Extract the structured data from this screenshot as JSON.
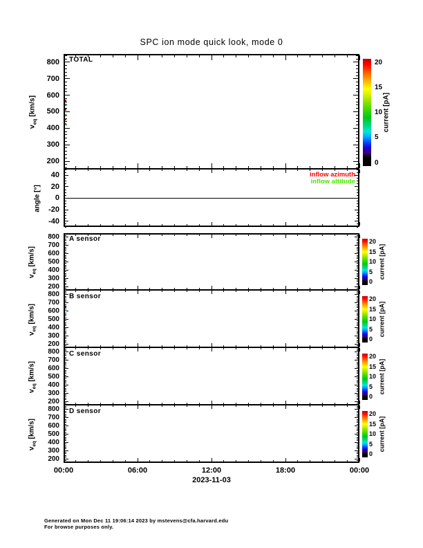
{
  "title": "SPC ion mode quick look, mode 0",
  "footer": {
    "line1": "Generated on Mon Dec 11 19:06:14 2023 by mstevens@cfa.harvard.edu",
    "line2": "For browse purposes only."
  },
  "chart_data": {
    "type": "heatmap",
    "title": "SPC ion mode quick look, mode 0",
    "x_axis": {
      "date_label": "2023-11-03",
      "range_hours": [
        0,
        24
      ],
      "major_tick_hours": [
        0,
        6,
        12,
        18,
        24
      ],
      "major_tick_labels": [
        "00:00",
        "06:00",
        "12:00",
        "18:00",
        "00:00"
      ],
      "minor_tick_interval_hours": 1
    },
    "colorbar": {
      "label": "current [pA]",
      "range": [
        0,
        20
      ],
      "tick_labels": [
        0,
        5,
        10,
        15,
        20
      ],
      "gradient": [
        {
          "pos": 0.0,
          "color": "#000000"
        },
        {
          "pos": 0.08,
          "color": "#000000"
        },
        {
          "pos": 0.12,
          "color": "#38006e"
        },
        {
          "pos": 0.17,
          "color": "#2000d0"
        },
        {
          "pos": 0.22,
          "color": "#0048ff"
        },
        {
          "pos": 0.27,
          "color": "#00a4ff"
        },
        {
          "pos": 0.32,
          "color": "#00e6e0"
        },
        {
          "pos": 0.38,
          "color": "#00d878"
        },
        {
          "pos": 0.45,
          "color": "#00c820"
        },
        {
          "pos": 0.52,
          "color": "#3cd800"
        },
        {
          "pos": 0.6,
          "color": "#8ce400"
        },
        {
          "pos": 0.66,
          "color": "#d2f000"
        },
        {
          "pos": 0.72,
          "color": "#ffff00"
        },
        {
          "pos": 0.78,
          "color": "#ffc000"
        },
        {
          "pos": 0.84,
          "color": "#ff8000"
        },
        {
          "pos": 0.9,
          "color": "#ff3c00"
        },
        {
          "pos": 0.95,
          "color": "#ff0000"
        },
        {
          "pos": 1.0,
          "color": "#c00000"
        }
      ]
    },
    "panels": [
      {
        "id": "total",
        "label": "TOTAL",
        "y_axis": {
          "label_main": "v",
          "label_sub": "eq",
          "label_units": "[km/s]",
          "range": [
            150,
            850
          ],
          "major_ticks": [
            200,
            300,
            400,
            500,
            600,
            700,
            800
          ],
          "minor_step": 20
        },
        "has_colorbar": true,
        "series": [],
        "edge_marks": [
          {
            "v": 569,
            "color": "#d00000"
          },
          {
            "v": 540,
            "color": "#00a000"
          },
          {
            "v": 511,
            "color": "#d00000"
          },
          {
            "v": 481,
            "color": "#00a000"
          },
          {
            "v": 452,
            "color": "#d00000"
          },
          {
            "v": 423,
            "color": "#00a000"
          }
        ]
      },
      {
        "id": "angle",
        "label": "",
        "y_axis": {
          "label_main": "angle",
          "label_sub": "",
          "label_units": "[°]",
          "range": [
            -50,
            50
          ],
          "major_ticks": [
            -40,
            -20,
            0,
            20,
            40
          ],
          "minor_step": 5
        },
        "zero_line": true,
        "legend": [
          {
            "label": "inflow azimuth",
            "color": "#ff0000"
          },
          {
            "label": "inflow attitude",
            "color": "#4de600"
          }
        ],
        "series": []
      },
      {
        "id": "sensor-a",
        "label": "A sensor",
        "y_axis": {
          "label_main": "v",
          "label_sub": "eq",
          "label_units": "[km/s]",
          "range": [
            150,
            850
          ],
          "major_ticks": [
            200,
            300,
            400,
            500,
            600,
            700,
            800
          ],
          "minor_step": 20
        },
        "has_colorbar": true,
        "series": []
      },
      {
        "id": "sensor-b",
        "label": "B sensor",
        "y_axis": {
          "label_main": "v",
          "label_sub": "eq",
          "label_units": "[km/s]",
          "range": [
            150,
            850
          ],
          "major_ticks": [
            200,
            300,
            400,
            500,
            600,
            700,
            800
          ],
          "minor_step": 20
        },
        "has_colorbar": true,
        "series": [],
        "edge_marks": [
          {
            "v": 645,
            "color": "#5c2d91"
          },
          {
            "v": 612,
            "color": "#00b8b8"
          }
        ]
      },
      {
        "id": "sensor-c",
        "label": "C sensor",
        "y_axis": {
          "label_main": "v",
          "label_sub": "eq",
          "label_units": "[km/s]",
          "range": [
            150,
            850
          ],
          "major_ticks": [
            200,
            300,
            400,
            500,
            600,
            700,
            800
          ],
          "minor_step": 20
        },
        "has_colorbar": true,
        "series": []
      },
      {
        "id": "sensor-d",
        "label": "D sensor",
        "y_axis": {
          "label_main": "v",
          "label_sub": "eq",
          "label_units": "[km/s]",
          "range": [
            150,
            850
          ],
          "major_ticks": [
            200,
            300,
            400,
            500,
            600,
            700,
            800
          ],
          "minor_step": 20
        },
        "has_colorbar": true,
        "series": []
      }
    ]
  }
}
